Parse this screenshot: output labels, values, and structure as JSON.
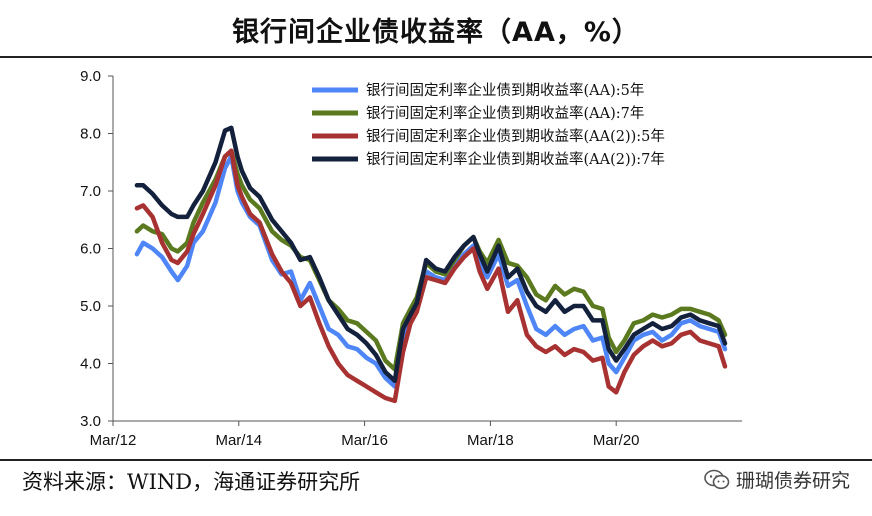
{
  "header": {
    "title": "银行间企业债收益率（AA，%）"
  },
  "footer": {
    "source": "资料来源：WIND，海通证券研究所",
    "watermark": "珊瑚债券研究"
  },
  "chart_data": {
    "type": "line",
    "title": "银行间企业债收益率（AA，%）",
    "xlabel": "",
    "ylabel": "",
    "ylim": [
      3.0,
      9.0
    ],
    "yticks": [
      "3.0",
      "4.0",
      "5.0",
      "6.0",
      "7.0",
      "8.0",
      "9.0"
    ],
    "xlim": [
      2012.17,
      2022.17
    ],
    "xticks": [
      {
        "x": 2012.17,
        "label": "Mar/12"
      },
      {
        "x": 2014.17,
        "label": "Mar/14"
      },
      {
        "x": 2016.17,
        "label": "Mar/16"
      },
      {
        "x": 2018.17,
        "label": "Mar/18"
      },
      {
        "x": 2020.17,
        "label": "Mar/20"
      }
    ],
    "legend_position": "top-right",
    "grid": false,
    "series": [
      {
        "name": "银行间固定利率企业债到期收益率(AA):5年",
        "color": "#4f86f7",
        "x": [
          2012.55,
          2012.65,
          2012.8,
          2012.95,
          2013.1,
          2013.2,
          2013.35,
          2013.45,
          2013.6,
          2013.8,
          2013.95,
          2014.05,
          2014.15,
          2014.22,
          2014.35,
          2014.5,
          2014.7,
          2014.85,
          2015.0,
          2015.15,
          2015.3,
          2015.45,
          2015.6,
          2015.75,
          2015.9,
          2016.05,
          2016.2,
          2016.35,
          2016.5,
          2016.65,
          2016.78,
          2016.9,
          2017.0,
          2017.15,
          2017.3,
          2017.45,
          2017.6,
          2017.75,
          2017.9,
          2018.0,
          2018.12,
          2018.3,
          2018.45,
          2018.6,
          2018.75,
          2018.9,
          2019.05,
          2019.2,
          2019.35,
          2019.5,
          2019.65,
          2019.8,
          2019.95,
          2020.05,
          2020.17,
          2020.3,
          2020.45,
          2020.6,
          2020.75,
          2020.9,
          2021.05,
          2021.2,
          2021.35,
          2021.5,
          2021.65,
          2021.8,
          2021.9
        ],
        "values": [
          5.9,
          6.1,
          6.0,
          5.85,
          5.6,
          5.45,
          5.7,
          6.1,
          6.3,
          6.8,
          7.4,
          7.6,
          7.0,
          6.8,
          6.55,
          6.4,
          5.8,
          5.55,
          5.6,
          5.1,
          5.4,
          5.0,
          4.6,
          4.5,
          4.3,
          4.25,
          4.1,
          4.0,
          3.75,
          3.6,
          4.5,
          4.8,
          5.0,
          5.6,
          5.5,
          5.45,
          5.7,
          5.9,
          6.05,
          5.75,
          5.5,
          5.9,
          5.35,
          5.45,
          5.0,
          4.6,
          4.5,
          4.65,
          4.5,
          4.6,
          4.65,
          4.4,
          4.45,
          4.0,
          3.85,
          4.1,
          4.4,
          4.5,
          4.55,
          4.4,
          4.5,
          4.7,
          4.75,
          4.65,
          4.6,
          4.55,
          4.25
        ]
      },
      {
        "name": "银行间固定利率企业债到期收益率(AA):7年",
        "color": "#5b7a1f",
        "x": [
          2012.55,
          2012.65,
          2012.8,
          2012.95,
          2013.1,
          2013.2,
          2013.35,
          2013.45,
          2013.6,
          2013.8,
          2013.95,
          2014.05,
          2014.15,
          2014.22,
          2014.35,
          2014.5,
          2014.7,
          2014.85,
          2015.0,
          2015.15,
          2015.3,
          2015.45,
          2015.6,
          2015.75,
          2015.9,
          2016.05,
          2016.2,
          2016.35,
          2016.5,
          2016.65,
          2016.78,
          2016.9,
          2017.0,
          2017.15,
          2017.3,
          2017.45,
          2017.6,
          2017.75,
          2017.9,
          2018.0,
          2018.12,
          2018.3,
          2018.45,
          2018.6,
          2018.75,
          2018.9,
          2019.05,
          2019.2,
          2019.35,
          2019.5,
          2019.65,
          2019.8,
          2019.95,
          2020.05,
          2020.17,
          2020.3,
          2020.45,
          2020.6,
          2020.75,
          2020.9,
          2021.05,
          2021.2,
          2021.35,
          2021.5,
          2021.65,
          2021.8,
          2021.9
        ],
        "values": [
          6.3,
          6.4,
          6.3,
          6.25,
          6.0,
          5.95,
          6.1,
          6.45,
          6.8,
          7.2,
          7.6,
          7.7,
          7.3,
          7.1,
          6.85,
          6.7,
          6.3,
          6.15,
          6.05,
          5.85,
          5.8,
          5.45,
          5.1,
          4.95,
          4.75,
          4.7,
          4.55,
          4.4,
          4.05,
          3.9,
          4.7,
          4.95,
          5.15,
          5.75,
          5.6,
          5.55,
          5.8,
          6.05,
          6.2,
          5.95,
          5.75,
          6.15,
          5.75,
          5.7,
          5.5,
          5.2,
          5.1,
          5.35,
          5.2,
          5.3,
          5.25,
          5.0,
          4.95,
          4.45,
          4.2,
          4.4,
          4.7,
          4.75,
          4.85,
          4.8,
          4.85,
          4.95,
          4.95,
          4.9,
          4.85,
          4.75,
          4.5
        ]
      },
      {
        "name": "银行间固定利率企业债到期收益率(AA(2)):5年",
        "color": "#a83232",
        "x": [
          2012.55,
          2012.65,
          2012.8,
          2012.95,
          2013.1,
          2013.2,
          2013.35,
          2013.45,
          2013.6,
          2013.8,
          2013.95,
          2014.05,
          2014.15,
          2014.22,
          2014.35,
          2014.5,
          2014.7,
          2014.85,
          2015.0,
          2015.15,
          2015.3,
          2015.45,
          2015.6,
          2015.75,
          2015.9,
          2016.05,
          2016.2,
          2016.35,
          2016.5,
          2016.65,
          2016.78,
          2016.9,
          2017.0,
          2017.15,
          2017.3,
          2017.45,
          2017.6,
          2017.75,
          2017.9,
          2018.0,
          2018.12,
          2018.3,
          2018.45,
          2018.6,
          2018.75,
          2018.9,
          2019.05,
          2019.2,
          2019.35,
          2019.5,
          2019.65,
          2019.8,
          2019.95,
          2020.05,
          2020.17,
          2020.3,
          2020.45,
          2020.6,
          2020.75,
          2020.9,
          2021.05,
          2021.2,
          2021.35,
          2021.5,
          2021.65,
          2021.8,
          2021.9
        ],
        "values": [
          6.7,
          6.75,
          6.55,
          6.1,
          5.8,
          5.75,
          5.95,
          6.25,
          6.6,
          7.1,
          7.6,
          7.7,
          7.1,
          6.9,
          6.6,
          6.45,
          5.9,
          5.6,
          5.4,
          5.0,
          5.15,
          4.7,
          4.3,
          4.0,
          3.8,
          3.7,
          3.6,
          3.5,
          3.4,
          3.35,
          4.2,
          4.7,
          4.9,
          5.5,
          5.45,
          5.4,
          5.65,
          5.85,
          6.0,
          5.6,
          5.3,
          5.65,
          4.9,
          5.1,
          4.5,
          4.3,
          4.2,
          4.3,
          4.15,
          4.25,
          4.2,
          4.05,
          4.1,
          3.6,
          3.5,
          3.85,
          4.15,
          4.3,
          4.4,
          4.3,
          4.35,
          4.5,
          4.55,
          4.4,
          4.35,
          4.3,
          3.95
        ]
      },
      {
        "name": "银行间固定利率企业债到期收益率(AA(2)):7年",
        "color": "#14213d",
        "x": [
          2012.55,
          2012.65,
          2012.8,
          2012.95,
          2013.1,
          2013.2,
          2013.35,
          2013.45,
          2013.6,
          2013.8,
          2013.95,
          2014.05,
          2014.15,
          2014.22,
          2014.35,
          2014.5,
          2014.7,
          2014.85,
          2015.0,
          2015.15,
          2015.3,
          2015.45,
          2015.6,
          2015.75,
          2015.9,
          2016.05,
          2016.2,
          2016.35,
          2016.5,
          2016.65,
          2016.78,
          2016.9,
          2017.0,
          2017.15,
          2017.3,
          2017.45,
          2017.6,
          2017.75,
          2017.9,
          2018.0,
          2018.12,
          2018.3,
          2018.45,
          2018.6,
          2018.75,
          2018.9,
          2019.05,
          2019.2,
          2019.35,
          2019.5,
          2019.65,
          2019.8,
          2019.95,
          2020.05,
          2020.17,
          2020.3,
          2020.45,
          2020.6,
          2020.75,
          2020.9,
          2021.05,
          2021.2,
          2021.35,
          2021.5,
          2021.65,
          2021.8,
          2021.9
        ],
        "values": [
          7.1,
          7.1,
          6.95,
          6.75,
          6.6,
          6.55,
          6.55,
          6.75,
          7.0,
          7.5,
          8.05,
          8.1,
          7.6,
          7.35,
          7.05,
          6.9,
          6.5,
          6.3,
          6.1,
          5.8,
          5.85,
          5.5,
          5.1,
          4.85,
          4.6,
          4.5,
          4.35,
          4.15,
          3.85,
          3.7,
          4.6,
          4.85,
          5.05,
          5.8,
          5.65,
          5.6,
          5.85,
          6.05,
          6.2,
          5.9,
          5.6,
          6.05,
          5.5,
          5.65,
          5.25,
          5.0,
          4.9,
          5.1,
          4.9,
          5.0,
          5.0,
          4.75,
          4.75,
          4.25,
          4.05,
          4.25,
          4.5,
          4.6,
          4.7,
          4.6,
          4.65,
          4.8,
          4.85,
          4.75,
          4.7,
          4.65,
          4.35
        ]
      }
    ]
  }
}
